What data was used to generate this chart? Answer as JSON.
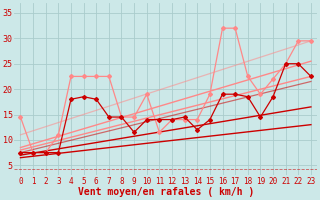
{
  "background_color": "#cce8e8",
  "grid_color": "#aacccc",
  "xlabel": "Vent moyen/en rafales ( km/h )",
  "xlabel_color": "#cc0000",
  "xlabel_fontsize": 7,
  "ylabel_ticks": [
    5,
    10,
    15,
    20,
    25,
    30,
    35
  ],
  "xtick_labels": [
    "0",
    "1",
    "2",
    "3",
    "4",
    "5",
    "6",
    "7",
    "8",
    "9",
    "10",
    "11",
    "12",
    "13",
    "14",
    "15",
    "16",
    "17",
    "18",
    "19",
    "20",
    "21",
    "22",
    "23"
  ],
  "xlim": [
    -0.5,
    23.5
  ],
  "ylim": [
    3,
    37
  ],
  "tick_color": "#cc0000",
  "tick_fontsize": 5.5,
  "series": [
    {
      "x": [
        0,
        1,
        2,
        3,
        4,
        5,
        6,
        7,
        8,
        9,
        10,
        11,
        12,
        13,
        14,
        15,
        16,
        17,
        18,
        19,
        20,
        21,
        22,
        23
      ],
      "y": [
        7.5,
        7.5,
        7.5,
        7.5,
        18,
        18.5,
        18,
        14.5,
        14.5,
        11.5,
        14,
        14,
        14,
        14.5,
        12,
        14,
        19,
        19,
        18.5,
        14.5,
        18.5,
        25,
        25,
        22.5
      ],
      "color": "#cc0000",
      "linewidth": 0.9,
      "marker": "D",
      "markersize": 2,
      "alpha": 1.0,
      "zorder": 5
    },
    {
      "x": [
        0,
        1,
        2,
        3,
        4,
        5,
        6,
        7,
        8,
        9,
        10,
        11,
        12,
        13,
        14,
        15,
        16,
        17,
        18,
        19,
        20,
        21,
        22,
        23
      ],
      "y": [
        14.5,
        7.5,
        7.5,
        11,
        22.5,
        22.5,
        22.5,
        22.5,
        14.5,
        14.5,
        19,
        11.5,
        14,
        14,
        14,
        19,
        32,
        32,
        22.5,
        19,
        22,
        25,
        29.5,
        29.5
      ],
      "color": "#ff8888",
      "linewidth": 0.9,
      "marker": "D",
      "markersize": 2,
      "alpha": 1.0,
      "zorder": 4
    },
    {
      "x": [
        0,
        23
      ],
      "y": [
        6.5,
        13.0
      ],
      "color": "#cc0000",
      "linewidth": 1.0,
      "marker": null,
      "markersize": 0,
      "alpha": 1.0,
      "zorder": 3
    },
    {
      "x": [
        0,
        23
      ],
      "y": [
        7.0,
        16.5
      ],
      "color": "#cc0000",
      "linewidth": 1.0,
      "marker": null,
      "markersize": 0,
      "alpha": 1.0,
      "zorder": 3
    },
    {
      "x": [
        0,
        23
      ],
      "y": [
        7.5,
        21.5
      ],
      "color": "#cc0000",
      "linewidth": 0.9,
      "marker": null,
      "markersize": 0,
      "alpha": 0.55,
      "zorder": 2
    },
    {
      "x": [
        0,
        23
      ],
      "y": [
        8.0,
        22.5
      ],
      "color": "#ff8888",
      "linewidth": 1.0,
      "marker": null,
      "markersize": 0,
      "alpha": 1.0,
      "zorder": 3
    },
    {
      "x": [
        0,
        23
      ],
      "y": [
        8.5,
        25.5
      ],
      "color": "#ff8888",
      "linewidth": 1.0,
      "marker": null,
      "markersize": 0,
      "alpha": 1.0,
      "zorder": 3
    },
    {
      "x": [
        0,
        23
      ],
      "y": [
        11.0,
        29.5
      ],
      "color": "#ff8888",
      "linewidth": 0.9,
      "marker": null,
      "markersize": 0,
      "alpha": 0.55,
      "zorder": 2
    }
  ],
  "dashed_line_color": "#cc0000",
  "dashed_line_alpha": 0.6,
  "dashed_line_y": 4.2
}
